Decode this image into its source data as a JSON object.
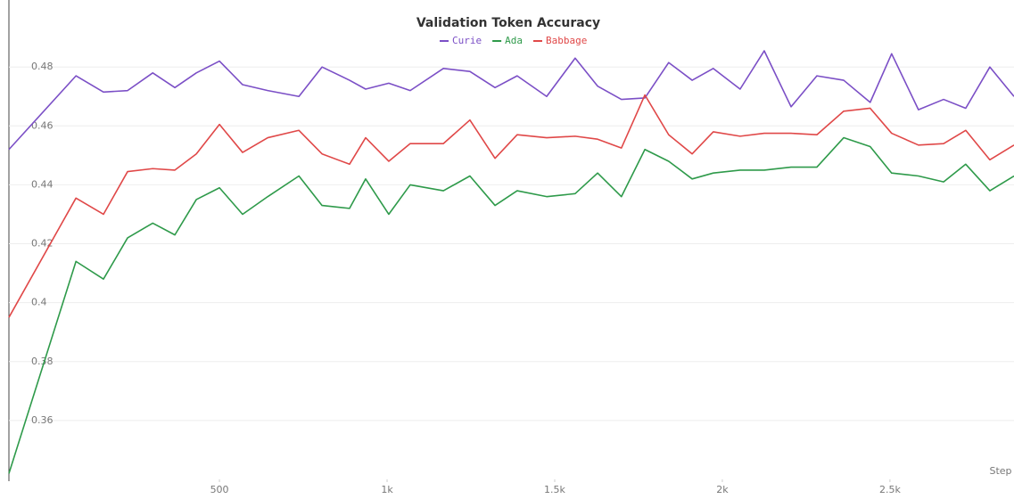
{
  "chart_data": {
    "type": "line",
    "title": "Validation Token Accuracy",
    "x_label": "Step",
    "x": [
      -128,
      72,
      154,
      226,
      301,
      367,
      431,
      500,
      569,
      644,
      737,
      806,
      888,
      936,
      1005,
      1069,
      1168,
      1247,
      1322,
      1388,
      1476,
      1561,
      1628,
      1699,
      1769,
      1840,
      1910,
      1973,
      2053,
      2125,
      2205,
      2282,
      2362,
      2441,
      2505,
      2585,
      2660,
      2726,
      2798,
      2870
    ],
    "series": [
      {
        "name": "Curie",
        "color": "#7b4fc6",
        "values": [
          0.452,
          0.477,
          0.4715,
          0.472,
          0.478,
          0.473,
          0.478,
          0.482,
          0.474,
          0.472,
          0.47,
          0.48,
          0.4755,
          0.4725,
          0.4745,
          0.472,
          0.4795,
          0.4785,
          0.473,
          0.477,
          0.47,
          0.483,
          0.4735,
          0.469,
          0.4695,
          0.4815,
          0.4755,
          0.4795,
          0.4725,
          0.4855,
          0.4665,
          0.477,
          0.4755,
          0.468,
          0.4845,
          0.4655,
          0.469,
          0.466,
          0.48,
          0.47
        ]
      },
      {
        "name": "Ada",
        "color": "#2e9a4a",
        "values": [
          0.342,
          0.414,
          0.408,
          0.422,
          0.427,
          0.423,
          0.435,
          0.439,
          0.43,
          0.436,
          0.443,
          0.433,
          0.432,
          0.442,
          0.43,
          0.44,
          0.438,
          0.443,
          0.433,
          0.438,
          0.436,
          0.437,
          0.444,
          0.436,
          0.452,
          0.448,
          0.442,
          0.444,
          0.445,
          0.445,
          0.446,
          0.446,
          0.456,
          0.453,
          0.444,
          0.443,
          0.441,
          0.447,
          0.438,
          0.443
        ]
      },
      {
        "name": "Babbage",
        "color": "#e04848",
        "values": [
          0.395,
          0.4355,
          0.43,
          0.4445,
          0.4455,
          0.445,
          0.4505,
          0.4605,
          0.451,
          0.456,
          0.4585,
          0.4505,
          0.447,
          0.456,
          0.448,
          0.454,
          0.454,
          0.462,
          0.449,
          0.457,
          0.456,
          0.4565,
          0.4555,
          0.4525,
          0.4705,
          0.457,
          0.4505,
          0.458,
          0.4565,
          0.4575,
          0.4575,
          0.457,
          0.465,
          0.466,
          0.4575,
          0.4535,
          0.454,
          0.4585,
          0.4485,
          0.4535
        ]
      }
    ],
    "xlim": [
      -128,
      2870
    ],
    "xticks": [
      500,
      {
        "value": 1000,
        "label": "1k"
      },
      {
        "value": 1500,
        "label": "1.5k"
      },
      {
        "value": 2000,
        "label": "2k"
      },
      {
        "value": 2500,
        "label": "2.5k"
      }
    ],
    "ylim": [
      0.34,
      0.497
    ],
    "yticks": [
      0.36,
      0.38,
      0.4,
      0.42,
      0.44,
      0.46,
      0.48
    ],
    "grid": true
  }
}
